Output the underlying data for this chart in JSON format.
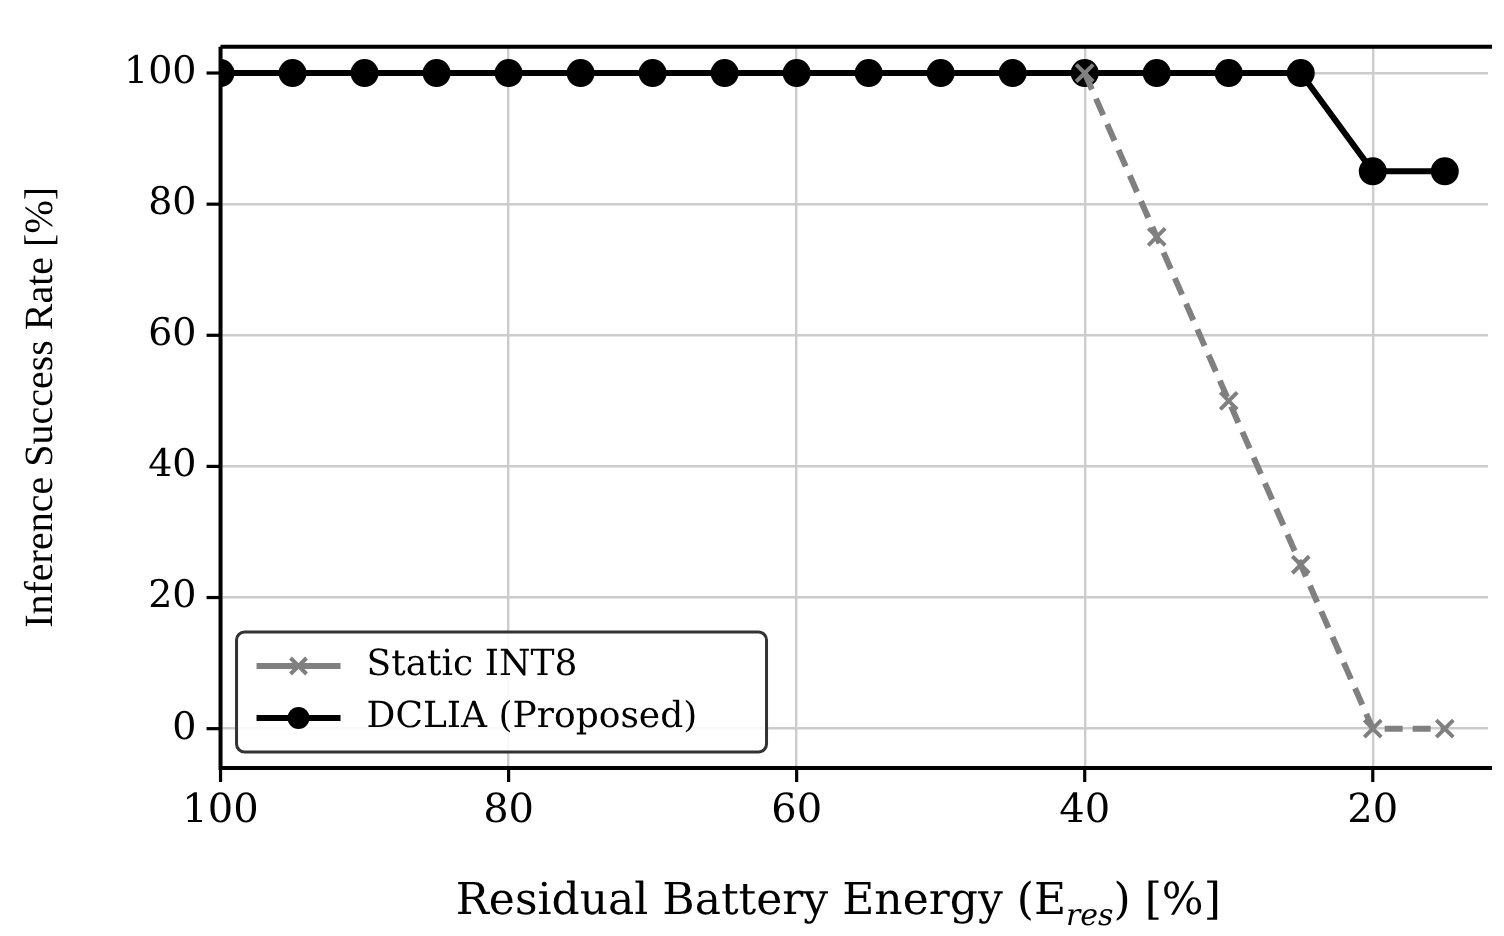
{
  "chart_data": {
    "type": "line",
    "xlabel": "Residual Battery Energy (E$_{res}$) [%]",
    "ylabel": "Inference Success Rate [%]",
    "x": [
      100,
      95,
      90,
      85,
      80,
      75,
      70,
      65,
      60,
      55,
      50,
      45,
      40,
      35,
      30,
      25,
      20,
      15
    ],
    "series": [
      {
        "name": "Static INT8",
        "color": "#808080",
        "line_style": "dashed",
        "marker": "cross",
        "values": [
          null,
          null,
          null,
          null,
          null,
          null,
          null,
          null,
          null,
          null,
          null,
          null,
          100,
          75,
          50,
          25,
          0,
          0
        ]
      },
      {
        "name": "DCLIA (Proposed)",
        "color": "#000000",
        "line_style": "solid",
        "marker": "circle",
        "values": [
          100,
          100,
          100,
          100,
          100,
          100,
          100,
          100,
          100,
          100,
          100,
          100,
          100,
          100,
          100,
          100,
          85,
          85
        ]
      }
    ],
    "xlim": [
      100,
      12
    ],
    "xticks": [
      100,
      80,
      60,
      40,
      20
    ],
    "ylim": [
      -6,
      104
    ],
    "yticks": [
      0,
      20,
      40,
      60,
      80,
      100
    ],
    "grid": true,
    "legend": "bottom left"
  }
}
